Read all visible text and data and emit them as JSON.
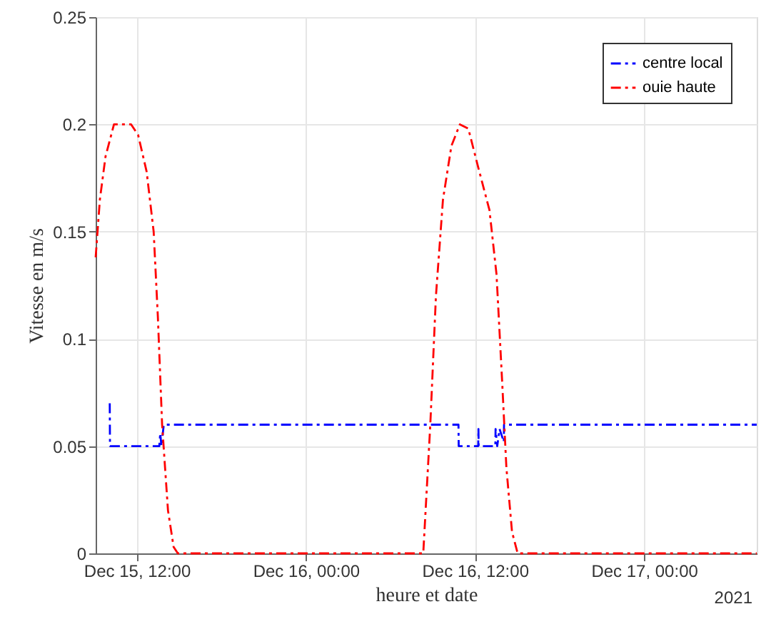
{
  "chart_data": {
    "type": "line",
    "xlabel": "heure et date",
    "ylabel": "Vitesse en m/s",
    "annotations": [
      "2021"
    ],
    "xlim": [
      "2021-12-15T09:05",
      "2021-12-17T08:00"
    ],
    "xticks": [
      {
        "value": "2021-12-15T12:00",
        "label": "Dec 15, 12:00"
      },
      {
        "value": "2021-12-16T00:00",
        "label": "Dec 16, 00:00"
      },
      {
        "value": "2021-12-16T12:00",
        "label": "Dec 16, 12:00"
      },
      {
        "value": "2021-12-17T00:00",
        "label": "Dec 17, 00:00"
      }
    ],
    "ylim": [
      0,
      0.25
    ],
    "yticks": [
      0,
      0.05,
      0.1,
      0.15,
      0.2,
      0.25
    ],
    "grid": true,
    "legend": "top right",
    "line_style": "dashed",
    "marker": "none",
    "series": [
      {
        "name": "centre local",
        "color": "#0000ff",
        "x": [
          "2021-12-15T10:05",
          "2021-12-15T10:06",
          "2021-12-15T13:36",
          "2021-12-15T13:40",
          "2021-12-15T13:45",
          "2021-12-15T13:55",
          "2021-12-16T10:50",
          "2021-12-16T10:51",
          "2021-12-16T12:14",
          "2021-12-16T12:15",
          "2021-12-16T12:16",
          "2021-12-16T13:27",
          "2021-12-16T13:28",
          "2021-12-16T13:35",
          "2021-12-16T13:45",
          "2021-12-16T14:03",
          "2021-12-16T14:04",
          "2021-12-17T08:00"
        ],
        "values": [
          0.07,
          0.05,
          0.05,
          0.056,
          0.05,
          0.06,
          0.06,
          0.05,
          0.05,
          0.058,
          0.05,
          0.05,
          0.058,
          0.05,
          0.058,
          0.052,
          0.06,
          0.06
        ]
      },
      {
        "name": "ouie haute",
        "color": "#ff0000",
        "x": [
          "2021-12-15T09:05",
          "2021-12-15T09:23",
          "2021-12-15T09:47",
          "2021-12-15T10:23",
          "2021-12-15T11:36",
          "2021-12-15T12:06",
          "2021-12-15T12:42",
          "2021-12-15T13:12",
          "2021-12-15T13:30",
          "2021-12-15T13:48",
          "2021-12-15T14:13",
          "2021-12-15T14:37",
          "2021-12-15T14:55",
          "2021-12-16T08:20",
          "2021-12-16T08:30",
          "2021-12-16T08:50",
          "2021-12-16T09:14",
          "2021-12-16T09:44",
          "2021-12-16T10:20",
          "2021-12-16T10:56",
          "2021-12-16T11:32",
          "2021-12-16T12:14",
          "2021-12-16T13:02",
          "2021-12-16T13:32",
          "2021-12-16T13:56",
          "2021-12-16T14:14",
          "2021-12-16T14:38",
          "2021-12-16T15:02",
          "2021-12-17T08:00"
        ],
        "values": [
          0.138,
          0.165,
          0.185,
          0.2,
          0.2,
          0.195,
          0.178,
          0.15,
          0.11,
          0.06,
          0.02,
          0.003,
          0,
          0,
          0.02,
          0.06,
          0.12,
          0.165,
          0.19,
          0.2,
          0.198,
          0.18,
          0.16,
          0.13,
          0.08,
          0.04,
          0.01,
          0,
          0
        ]
      }
    ]
  }
}
